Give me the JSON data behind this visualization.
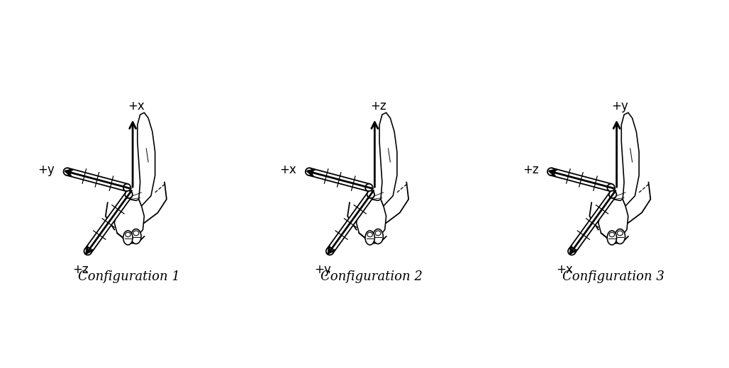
{
  "background_color": "#ffffff",
  "configs": [
    {
      "label": "Configuration 1",
      "axis_labels": {
        "up": "+x",
        "left": "+y",
        "lower_left": "+z"
      }
    },
    {
      "label": "Configuration 2",
      "axis_labels": {
        "up": "+z",
        "left": "+x",
        "lower_left": "+y"
      }
    },
    {
      "label": "Configuration 3",
      "axis_labels": {
        "up": "+y",
        "left": "+z",
        "lower_left": "+x"
      }
    }
  ],
  "label_fontsize": 13,
  "arrow_color": "#000000",
  "line_color": "#000000"
}
